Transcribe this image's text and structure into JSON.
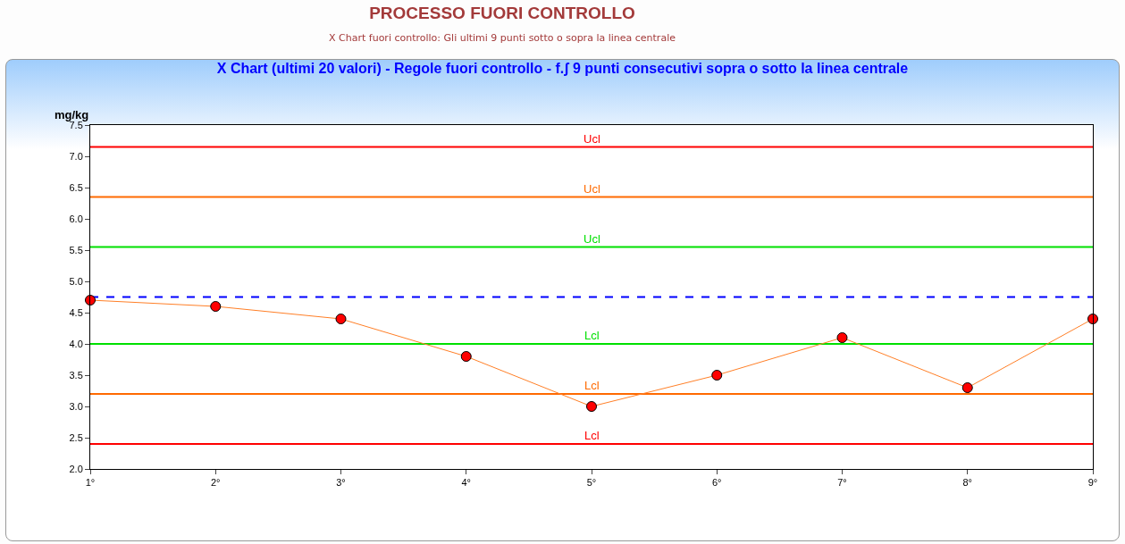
{
  "chart_data": {
    "type": "line",
    "title": "PROCESSO FUORI CONTROLLO",
    "subtitle": "X Chart fuori controllo: Gli ultimi 9 punti sotto o sopra la linea centrale",
    "annotations": [
      "X Chart (ultimi 20 valori) - Regole fuori controllo - f.ʃ 9 punti consecutivi sopra o sotto la linea centrale"
    ],
    "ylabel": "mg/kg",
    "categories": [
      "1°",
      "2°",
      "3°",
      "4°",
      "5°",
      "6°",
      "7°",
      "8°",
      "9°"
    ],
    "series": [
      {
        "color": "#ff7f27",
        "colors": [
          "#ff0000",
          "#ff0000",
          "#ff0000",
          "#ff0000",
          "#ff0000",
          "#ff0000",
          "#ff0000",
          "#ff0000",
          "#ff0000"
        ],
        "values": [
          4.7,
          4.6,
          4.4,
          3.8,
          3.0,
          3.5,
          4.1,
          3.3,
          4.4
        ]
      }
    ],
    "ylim": [
      2.0,
      7.5
    ],
    "yticks": [
      {
        "value": 2,
        "label": "2.0"
      },
      2.5,
      {
        "value": 3,
        "label": "3.0"
      },
      3.5,
      {
        "value": 4,
        "label": "4.0"
      },
      4.5,
      {
        "value": 5,
        "label": "5.0"
      },
      5.5,
      {
        "value": 6,
        "label": "6.0"
      },
      6.5,
      {
        "value": 7,
        "label": "7.0"
      },
      7.5
    ],
    "ref_lines": [
      {
        "axis": "y",
        "value": 7.15,
        "label": "Ucl",
        "color": "#ff0000"
      },
      {
        "axis": "y",
        "value": 6.35,
        "label": "Ucl",
        "color": "#ff6a00"
      },
      {
        "axis": "y",
        "value": 5.55,
        "label": "Ucl",
        "color": "#00e000"
      },
      {
        "axis": "y",
        "value": 4.75,
        "label": null,
        "color": "#0000ff",
        "line_style": "dashed"
      },
      {
        "axis": "y",
        "value": 4.0,
        "label": "Lcl",
        "color": "#00e000"
      },
      {
        "axis": "y",
        "value": 3.2,
        "label": "Lcl",
        "color": "#ff6a00"
      },
      {
        "axis": "y",
        "value": 2.4,
        "label": "Lcl",
        "color": "#ff0000"
      }
    ],
    "marker": "circle",
    "grid": false
  }
}
